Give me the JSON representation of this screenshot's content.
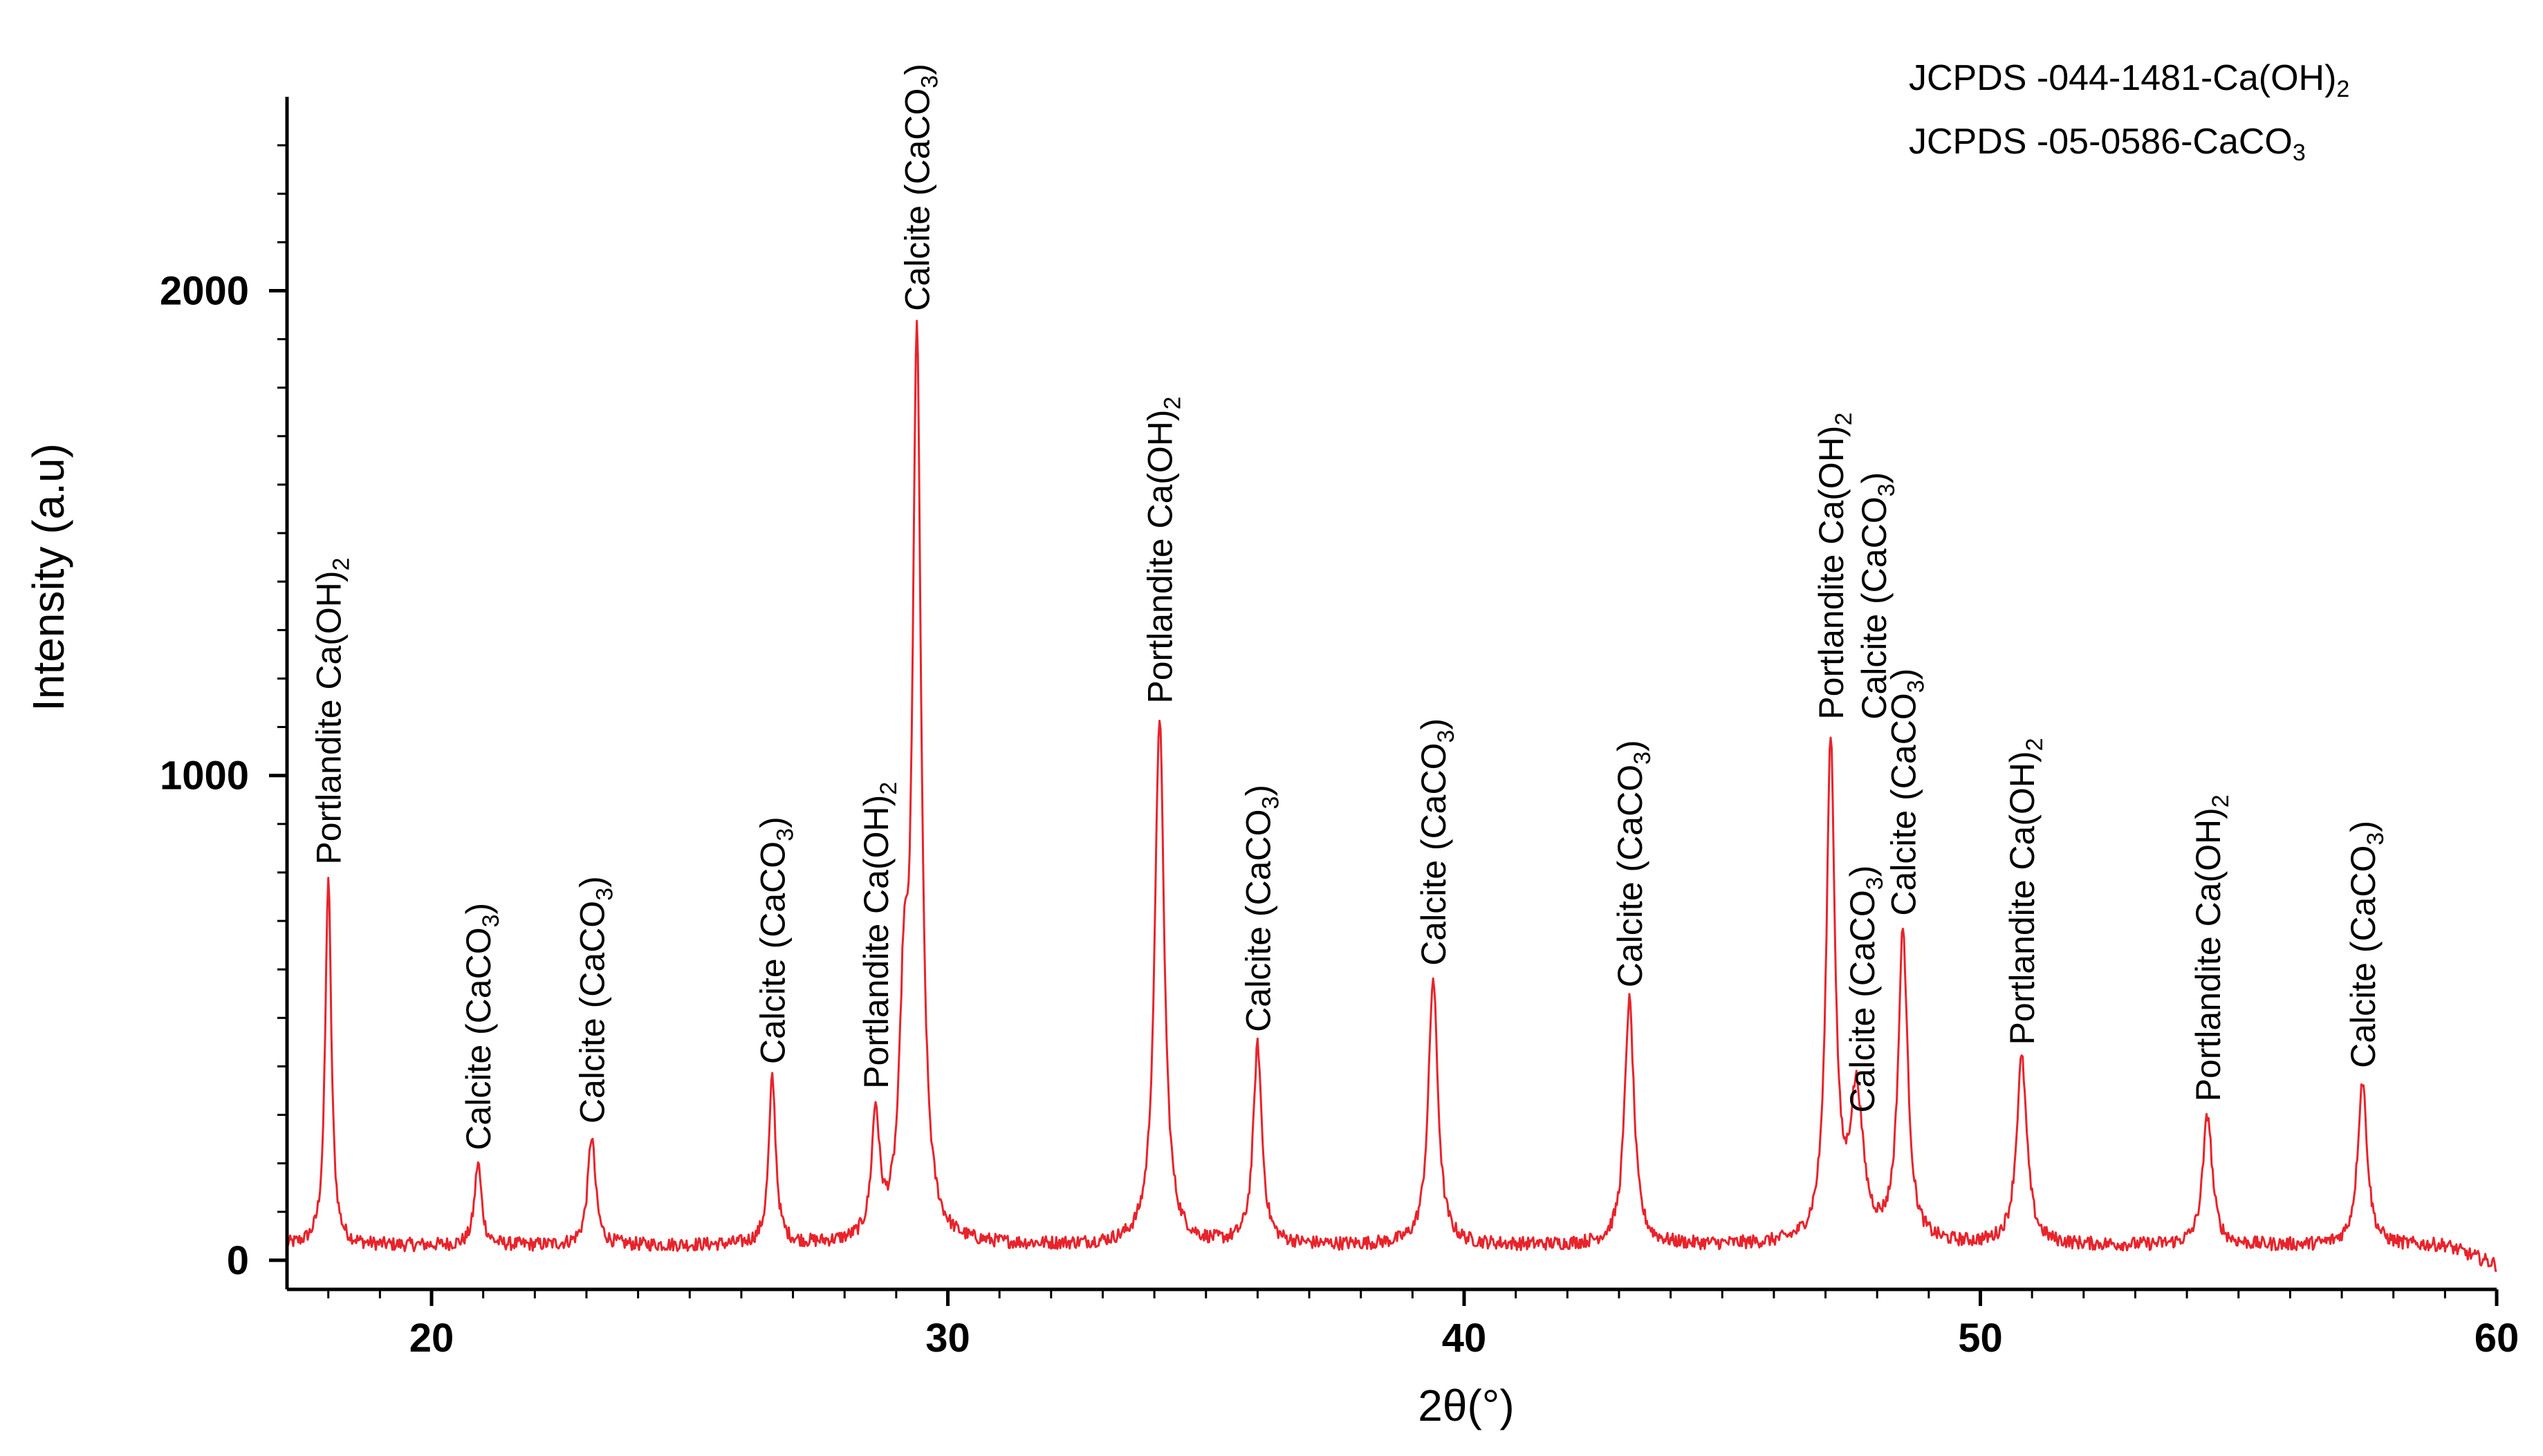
{
  "chart_data": {
    "type": "line",
    "xlabel": "2θ(°)",
    "ylabel": "Intensity (a.u)",
    "xlim": [
      17.2,
      60
    ],
    "ylim": [
      -60,
      2400
    ],
    "x_ticks": [
      "20",
      "30",
      "40",
      "50",
      "60"
    ],
    "y_ticks": [
      "0",
      "1000",
      "2000"
    ],
    "grid": false,
    "line_color": "#e8232b",
    "references": [
      {
        "text": "JCPDS -044-1481-Ca(OH)",
        "sub": "2"
      },
      {
        "text": "JCPDS -05-0586-CaCO",
        "sub": "3"
      }
    ],
    "series": [
      {
        "peaks": [
          {
            "x": 18.0,
            "y": 760,
            "w": 0.07
          },
          {
            "x": 20.9,
            "y": 170,
            "w": 0.08
          },
          {
            "x": 23.1,
            "y": 225,
            "w": 0.09
          },
          {
            "x": 26.6,
            "y": 345,
            "w": 0.08
          },
          {
            "x": 28.6,
            "y": 255,
            "w": 0.09
          },
          {
            "x": 29.4,
            "y": 1840,
            "w": 0.1
          },
          {
            "x": 29.15,
            "y": 420,
            "w": 0.1
          },
          {
            "x": 34.1,
            "y": 1090,
            "w": 0.11
          },
          {
            "x": 36.0,
            "y": 410,
            "w": 0.1
          },
          {
            "x": 39.4,
            "y": 550,
            "w": 0.11
          },
          {
            "x": 43.2,
            "y": 505,
            "w": 0.11
          },
          {
            "x": 47.1,
            "y": 1030,
            "w": 0.1
          },
          {
            "x": 47.6,
            "y": 300,
            "w": 0.15
          },
          {
            "x": 48.5,
            "y": 640,
            "w": 0.11
          },
          {
            "x": 50.8,
            "y": 385,
            "w": 0.12
          },
          {
            "x": 54.4,
            "y": 270,
            "w": 0.11
          },
          {
            "x": 57.4,
            "y": 340,
            "w": 0.11
          }
        ],
        "background": 30
      }
    ],
    "annotations": [
      {
        "x": 18.0,
        "lines": [
          {
            "text": "Portlandite Ca(OH)",
            "sub": "2"
          }
        ]
      },
      {
        "x": 20.9,
        "lines": [
          {
            "text": "Calcite  (CaCO",
            "sub": "3",
            "after": ")"
          }
        ]
      },
      {
        "x": 23.1,
        "lines": [
          {
            "text": "Calcite  (CaCO",
            "sub": "3",
            "after": ")"
          }
        ]
      },
      {
        "x": 26.6,
        "lines": [
          {
            "text": "Calcite  (CaCO",
            "sub": "3",
            "after": ")"
          }
        ]
      },
      {
        "x": 28.6,
        "lines": [
          {
            "text": "Portlandite Ca(OH)",
            "sub": "2"
          }
        ]
      },
      {
        "x": 29.4,
        "lines": [
          {
            "text": "Calcite  (CaCO",
            "sub": "3",
            "after": ")"
          }
        ]
      },
      {
        "x": 34.1,
        "lines": [
          {
            "text": "Portlandite Ca(OH)",
            "sub": "2"
          }
        ]
      },
      {
        "x": 36.0,
        "lines": [
          {
            "text": "Calcite  (CaCO",
            "sub": "3",
            "after": ")"
          }
        ]
      },
      {
        "x": 39.4,
        "lines": [
          {
            "text": "Calcite  (CaCO",
            "sub": "3",
            "after": ")"
          }
        ]
      },
      {
        "x": 43.2,
        "lines": [
          {
            "text": "Calcite  (CaCO",
            "sub": "3",
            "after": ")"
          }
        ]
      },
      {
        "x": 47.1,
        "lines": [
          {
            "text": "Portlandite Ca(OH)",
            "sub": "2"
          },
          {
            "text": "Calcite  (CaCO",
            "sub": "3",
            "after": ")"
          }
        ]
      },
      {
        "x": 47.7,
        "lines": [
          {
            "text": "Calcite  (CaCO",
            "sub": "3",
            "after": ")"
          }
        ]
      },
      {
        "x": 48.5,
        "lines": [
          {
            "text": "Calcite  (CaCO",
            "sub": "3",
            "after": ")"
          }
        ]
      },
      {
        "x": 50.8,
        "lines": [
          {
            "text": "Portlandite Ca(OH)",
            "sub": "2"
          }
        ]
      },
      {
        "x": 54.4,
        "lines": [
          {
            "text": "Portlandite Ca(OH)",
            "sub": "2"
          }
        ]
      },
      {
        "x": 57.4,
        "lines": [
          {
            "text": "Calcite  (CaCO",
            "sub": "3",
            "after": ")"
          }
        ]
      }
    ]
  }
}
